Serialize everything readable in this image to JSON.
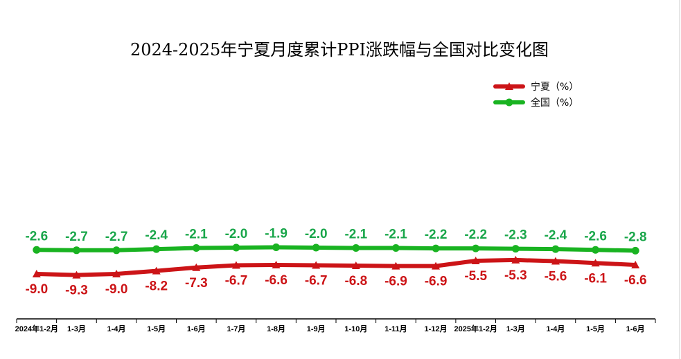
{
  "chart_data": {
    "type": "line",
    "title": "2024-2025年宁夏月度累计PPI涨跌幅与全国对比变化图",
    "categories": [
      "2024年1-2月",
      "1-3月",
      "1-4月",
      "1-5月",
      "1-6月",
      "1-7月",
      "1-8月",
      "1-9月",
      "1-10月",
      "1-11月",
      "1-12月",
      "2025年1-2月",
      "1-3月",
      "1-4月",
      "1-5月",
      "1-6月"
    ],
    "series": [
      {
        "name": "宁夏（%）",
        "color": "#cc1417",
        "marker": "triangle",
        "values": [
          -9.0,
          -9.3,
          -9.0,
          -8.2,
          -7.3,
          -6.7,
          -6.6,
          -6.7,
          -6.8,
          -6.9,
          -6.9,
          -5.5,
          -5.3,
          -5.6,
          -6.1,
          -6.6
        ],
        "labels": [
          "-9.0",
          "-9.3",
          "-9.0",
          "-8.2",
          "-7.3",
          "-6.7",
          "-6.6",
          "-6.7",
          "-6.8",
          "-6.9",
          "-6.9",
          "-5.5",
          "-5.3",
          "-5.6",
          "-6.1",
          "-6.6"
        ]
      },
      {
        "name": "全国（%）",
        "color": "#19b321",
        "marker": "circle",
        "values": [
          -2.6,
          -2.7,
          -2.7,
          -2.4,
          -2.1,
          -2.0,
          -1.9,
          -2.0,
          -2.1,
          -2.1,
          -2.2,
          -2.2,
          -2.3,
          -2.4,
          -2.6,
          -2.8
        ],
        "labels": [
          "-2.6",
          "-2.7",
          "-2.7",
          "-2.4",
          "-2.1",
          "-2.0",
          "-1.9",
          "-2.0",
          "-2.1",
          "-2.1",
          "-2.2",
          "-2.2",
          "-2.3",
          "-2.4",
          "-2.6",
          "-2.8"
        ]
      }
    ],
    "legend_position": "top-right",
    "grid": false
  }
}
